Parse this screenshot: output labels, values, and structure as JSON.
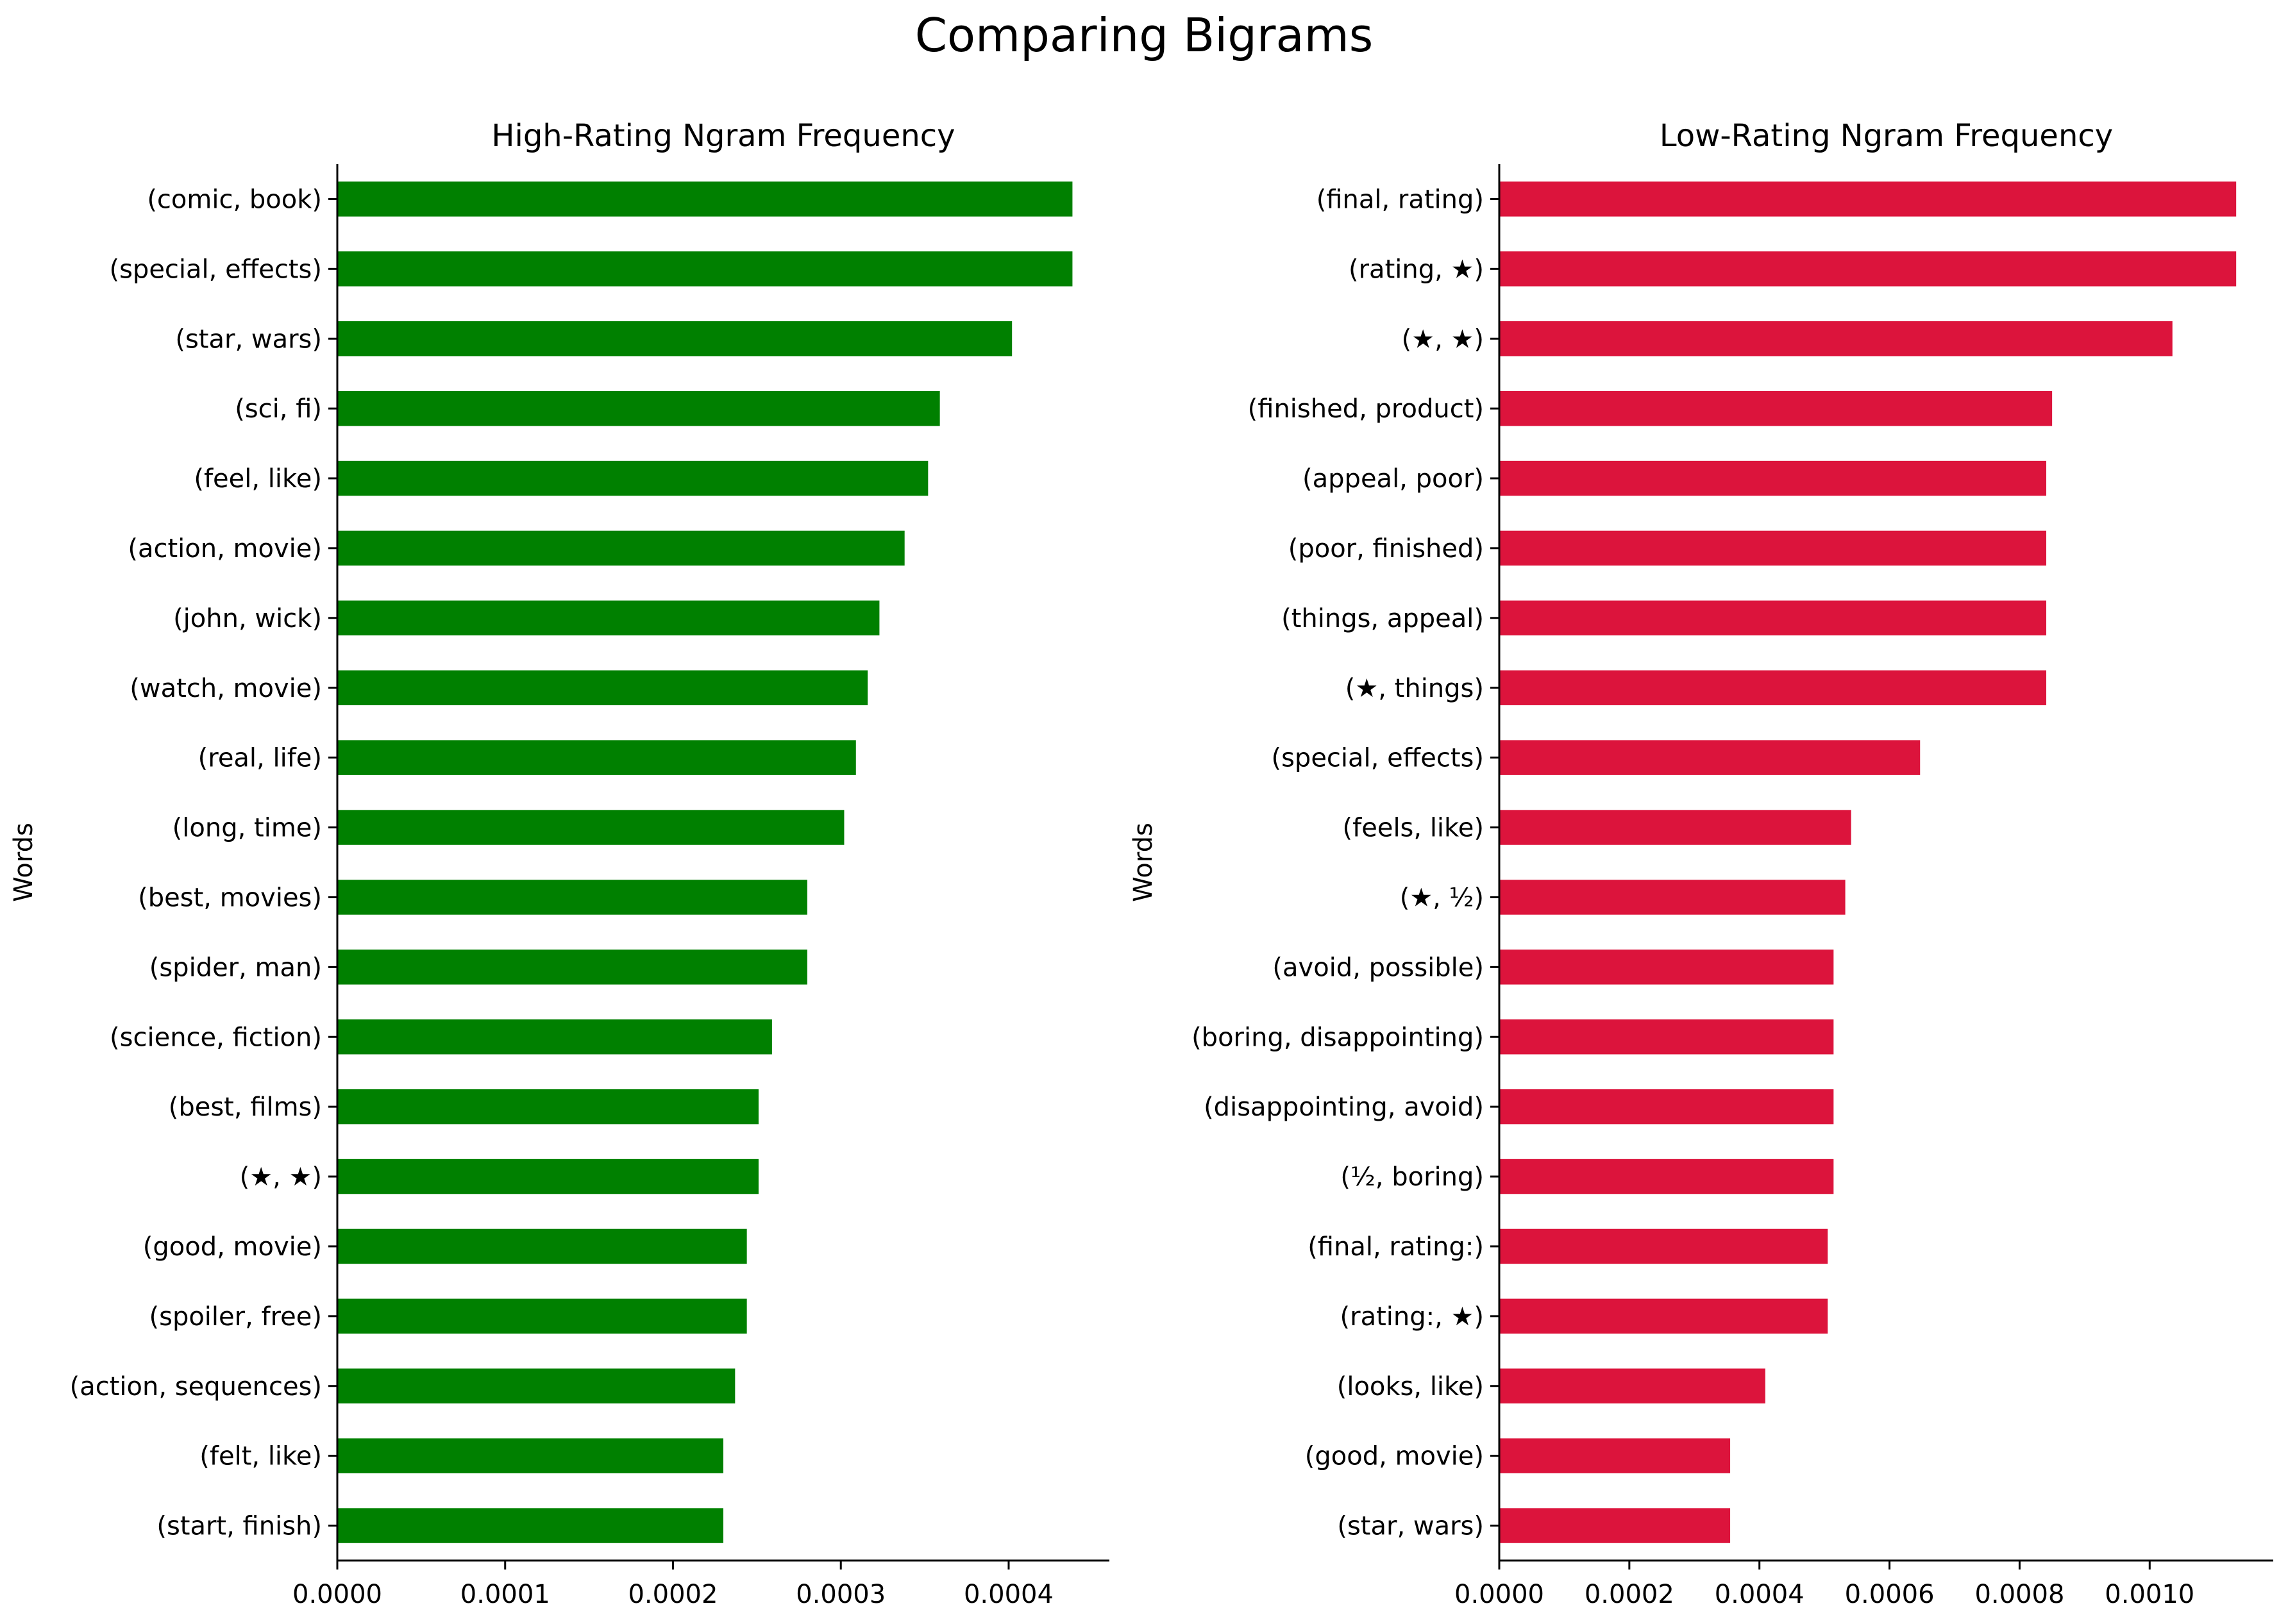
{
  "figure_title": "Comparing Bigrams",
  "chart_data": [
    {
      "type": "bar",
      "orientation": "horizontal",
      "title": "High-Rating Ngram Frequency",
      "ylabel": "Words",
      "xlabel": "",
      "color": "#008000",
      "xlim": [
        0,
        0.00046
      ],
      "xticks": [
        "0.0000",
        "0.0001",
        "0.0002",
        "0.0003",
        "0.0004"
      ],
      "xtick_values": [
        0,
        0.0001,
        0.0002,
        0.0003,
        0.0004
      ],
      "categories": [
        "(comic, book)",
        "(special, effects)",
        "(star, wars)",
        "(sci, fi)",
        "(feel, like)",
        "(action, movie)",
        "(john, wick)",
        "(watch, movie)",
        "(real, life)",
        "(long, time)",
        "(best, movies)",
        "(spider, man)",
        "(science, fiction)",
        "(best, films)",
        "(★, ★)",
        "(good, movie)",
        "(spoiler, free)",
        "(action, sequences)",
        "(felt, like)",
        "(start, finish)"
      ],
      "values": [
        0.000438,
        0.000438,
        0.000402,
        0.000359,
        0.000352,
        0.000338,
        0.000323,
        0.000316,
        0.000309,
        0.000302,
        0.00028,
        0.00028,
        0.000259,
        0.000251,
        0.000251,
        0.000244,
        0.000244,
        0.000237,
        0.00023,
        0.00023
      ],
      "grid": false
    },
    {
      "type": "bar",
      "orientation": "horizontal",
      "title": "Low-Rating Ngram Frequency",
      "ylabel": "Words",
      "xlabel": "",
      "color": "#DC143C",
      "xlim": [
        0,
        0.00119
      ],
      "xticks": [
        "0.0000",
        "0.0002",
        "0.0004",
        "0.0006",
        "0.0008",
        "0.0010"
      ],
      "xtick_values": [
        0,
        0.0002,
        0.0004,
        0.0006,
        0.0008,
        0.001
      ],
      "categories": [
        "(final, rating)",
        "(rating, ★)",
        "(★, ★)",
        "(finished, product)",
        "(appeal, poor)",
        "(poor, finished)",
        "(things, appeal)",
        "(★, things)",
        "(special, effects)",
        "(feels, like)",
        "(★, ½)",
        "(avoid, possible)",
        "(boring, disappointing)",
        "(disappointing, avoid)",
        "(½, boring)",
        "(final, rating:)",
        "(rating:, ★)",
        "(looks, like)",
        "(good, movie)",
        "(star, wars)"
      ],
      "values": [
        0.001133,
        0.001133,
        0.001035,
        0.00085,
        0.000841,
        0.000841,
        0.000841,
        0.000841,
        0.000647,
        0.000541,
        0.000532,
        0.000514,
        0.000514,
        0.000514,
        0.000514,
        0.000505,
        0.000505,
        0.000409,
        0.000355,
        0.000355
      ],
      "grid": false
    }
  ]
}
